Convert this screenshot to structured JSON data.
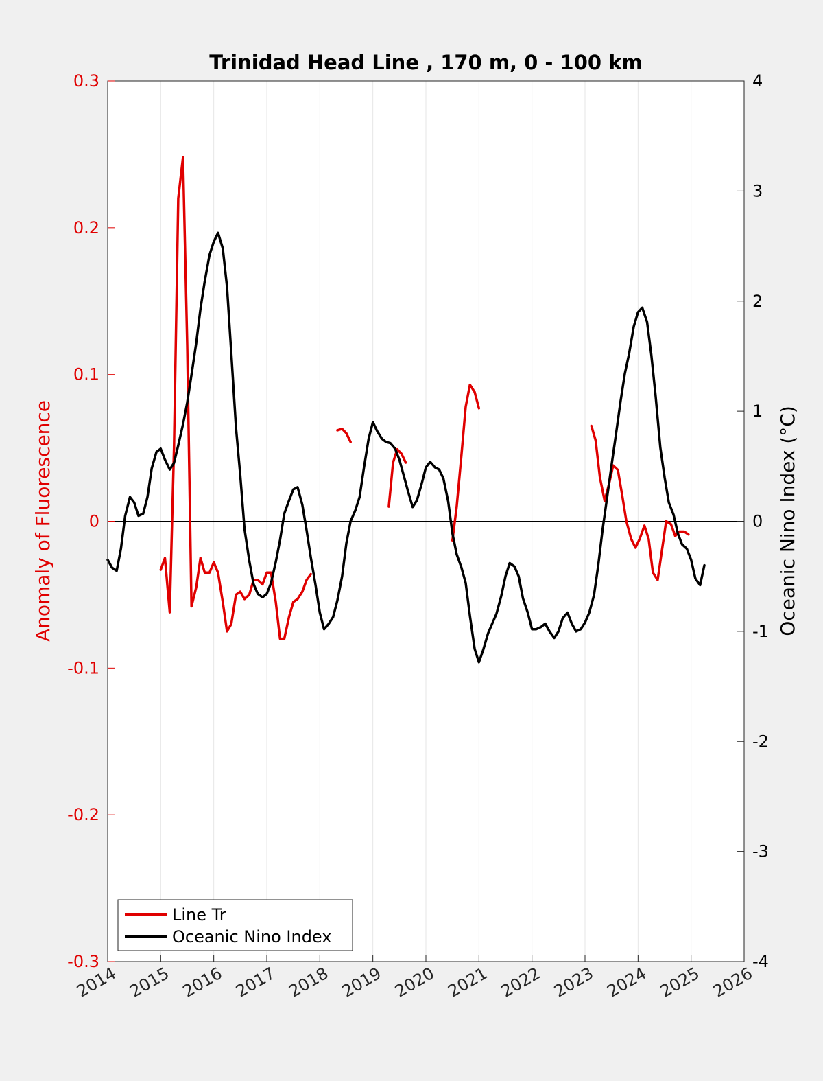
{
  "chart_data": {
    "type": "line",
    "title": "Trinidad Head Line , 170 m, 0 - 100 km",
    "ylabel_left": "Anomaly of Fluorescence",
    "ylabel_right": "Oceanic Nino Index (°C)",
    "xlim": [
      2014,
      2026
    ],
    "ylim_left": [
      -0.3,
      0.3
    ],
    "ylim_right": [
      -4,
      4
    ],
    "xticks": [
      2014,
      2015,
      2016,
      2017,
      2018,
      2019,
      2020,
      2021,
      2022,
      2023,
      2024,
      2025,
      2026
    ],
    "xtick_labels": [
      "2014",
      "2015",
      "2016",
      "2017",
      "2018",
      "2019",
      "2020",
      "2021",
      "2022",
      "2023",
      "2024",
      "2025",
      "2026"
    ],
    "yticks_left": [
      0.3,
      0.2,
      0.1,
      0,
      -0.1,
      -0.2,
      -0.3
    ],
    "ytick_labels_left": [
      "0.3",
      "0.2",
      "0.1",
      "0",
      "-0.1",
      "-0.2",
      "-0.3"
    ],
    "yticks_right": [
      4,
      3,
      2,
      1,
      0,
      -1,
      -2,
      -3,
      -4
    ],
    "ytick_labels_right": [
      "4",
      "3",
      "2",
      "1",
      "0",
      "-1",
      "-2",
      "-3",
      "-4"
    ],
    "grid": "vertical",
    "legend_position": "bottom-left",
    "legend": [
      "Line Tr",
      "Oceanic Nino Index"
    ],
    "colors": {
      "line_tr": "#e00000",
      "oni": "#000000",
      "left_axis": "#e00000"
    },
    "series": [
      {
        "name": "Line Tr",
        "axis": "left",
        "color": "#e00000",
        "segments": [
          [
            [
              2015.0,
              -0.033
            ],
            [
              2015.08,
              -0.025
            ],
            [
              2015.17,
              -0.062
            ],
            [
              2015.25,
              0.05
            ],
            [
              2015.33,
              0.22
            ],
            [
              2015.42,
              0.248
            ],
            [
              2015.5,
              0.12
            ],
            [
              2015.58,
              -0.058
            ],
            [
              2015.67,
              -0.045
            ],
            [
              2015.75,
              -0.025
            ],
            [
              2015.83,
              -0.035
            ],
            [
              2015.92,
              -0.035
            ],
            [
              2016.0,
              -0.028
            ],
            [
              2016.08,
              -0.035
            ],
            [
              2016.17,
              -0.055
            ],
            [
              2016.25,
              -0.075
            ],
            [
              2016.33,
              -0.07
            ],
            [
              2016.42,
              -0.05
            ],
            [
              2016.5,
              -0.048
            ],
            [
              2016.58,
              -0.053
            ],
            [
              2016.67,
              -0.05
            ],
            [
              2016.75,
              -0.04
            ],
            [
              2016.83,
              -0.04
            ],
            [
              2016.92,
              -0.043
            ],
            [
              2017.0,
              -0.035
            ],
            [
              2017.08,
              -0.035
            ],
            [
              2017.17,
              -0.055
            ],
            [
              2017.25,
              -0.08
            ],
            [
              2017.33,
              -0.08
            ],
            [
              2017.42,
              -0.065
            ],
            [
              2017.5,
              -0.055
            ],
            [
              2017.58,
              -0.053
            ],
            [
              2017.67,
              -0.048
            ],
            [
              2017.75,
              -0.04
            ],
            [
              2017.83,
              -0.036
            ]
          ],
          [
            [
              2018.33,
              0.062
            ],
            [
              2018.42,
              0.063
            ],
            [
              2018.5,
              0.06
            ],
            [
              2018.58,
              0.054
            ]
          ],
          [
            [
              2019.3,
              0.01
            ],
            [
              2019.38,
              0.04
            ],
            [
              2019.46,
              0.049
            ],
            [
              2019.54,
              0.046
            ],
            [
              2019.62,
              0.04
            ]
          ],
          [
            [
              2020.5,
              -0.013
            ],
            [
              2020.58,
              0.01
            ],
            [
              2020.67,
              0.045
            ],
            [
              2020.75,
              0.078
            ],
            [
              2020.83,
              0.093
            ],
            [
              2020.92,
              0.088
            ],
            [
              2021.0,
              0.077
            ]
          ],
          [
            [
              2023.12,
              0.065
            ],
            [
              2023.2,
              0.055
            ],
            [
              2023.28,
              0.03
            ],
            [
              2023.37,
              0.014
            ],
            [
              2023.45,
              0.025
            ],
            [
              2023.53,
              0.038
            ],
            [
              2023.62,
              0.035
            ],
            [
              2023.7,
              0.018
            ],
            [
              2023.78,
              0.0
            ],
            [
              2023.87,
              -0.012
            ],
            [
              2023.95,
              -0.018
            ],
            [
              2024.03,
              -0.012
            ],
            [
              2024.12,
              -0.003
            ],
            [
              2024.2,
              -0.012
            ],
            [
              2024.28,
              -0.035
            ],
            [
              2024.37,
              -0.04
            ],
            [
              2024.45,
              -0.02
            ],
            [
              2024.53,
              0.0
            ],
            [
              2024.62,
              -0.002
            ],
            [
              2024.7,
              -0.01
            ],
            [
              2024.78,
              -0.007
            ],
            [
              2024.87,
              -0.007
            ],
            [
              2024.95,
              -0.009
            ]
          ]
        ]
      },
      {
        "name": "Oceanic Nino Index",
        "axis": "right",
        "color": "#000000",
        "segments": [
          [
            [
              2014.0,
              -0.35
            ],
            [
              2014.08,
              -0.42
            ],
            [
              2014.17,
              -0.45
            ],
            [
              2014.25,
              -0.25
            ],
            [
              2014.33,
              0.05
            ],
            [
              2014.42,
              0.22
            ],
            [
              2014.5,
              0.17
            ],
            [
              2014.58,
              0.05
            ],
            [
              2014.67,
              0.07
            ],
            [
              2014.75,
              0.22
            ],
            [
              2014.83,
              0.48
            ],
            [
              2014.92,
              0.63
            ],
            [
              2015.0,
              0.66
            ],
            [
              2015.08,
              0.56
            ],
            [
              2015.17,
              0.47
            ],
            [
              2015.25,
              0.53
            ],
            [
              2015.33,
              0.69
            ],
            [
              2015.42,
              0.88
            ],
            [
              2015.5,
              1.08
            ],
            [
              2015.58,
              1.33
            ],
            [
              2015.67,
              1.62
            ],
            [
              2015.75,
              1.93
            ],
            [
              2015.83,
              2.18
            ],
            [
              2015.92,
              2.42
            ],
            [
              2016.0,
              2.54
            ],
            [
              2016.08,
              2.62
            ],
            [
              2016.17,
              2.48
            ],
            [
              2016.25,
              2.13
            ],
            [
              2016.33,
              1.53
            ],
            [
              2016.42,
              0.85
            ],
            [
              2016.5,
              0.42
            ],
            [
              2016.58,
              -0.07
            ],
            [
              2016.67,
              -0.36
            ],
            [
              2016.75,
              -0.57
            ],
            [
              2016.83,
              -0.66
            ],
            [
              2016.92,
              -0.69
            ],
            [
              2017.0,
              -0.66
            ],
            [
              2017.08,
              -0.56
            ],
            [
              2017.17,
              -0.37
            ],
            [
              2017.25,
              -0.17
            ],
            [
              2017.33,
              0.07
            ],
            [
              2017.42,
              0.19
            ],
            [
              2017.5,
              0.29
            ],
            [
              2017.58,
              0.31
            ],
            [
              2017.67,
              0.15
            ],
            [
              2017.75,
              -0.08
            ],
            [
              2017.83,
              -0.33
            ],
            [
              2017.92,
              -0.58
            ],
            [
              2018.0,
              -0.83
            ],
            [
              2018.08,
              -0.98
            ],
            [
              2018.17,
              -0.93
            ],
            [
              2018.25,
              -0.87
            ],
            [
              2018.33,
              -0.72
            ],
            [
              2018.42,
              -0.5
            ],
            [
              2018.5,
              -0.2
            ],
            [
              2018.58,
              0.0
            ],
            [
              2018.67,
              0.1
            ],
            [
              2018.75,
              0.22
            ],
            [
              2018.83,
              0.48
            ],
            [
              2018.92,
              0.75
            ],
            [
              2019.0,
              0.9
            ],
            [
              2019.08,
              0.82
            ],
            [
              2019.17,
              0.75
            ],
            [
              2019.25,
              0.72
            ],
            [
              2019.33,
              0.71
            ],
            [
              2019.42,
              0.66
            ],
            [
              2019.5,
              0.56
            ],
            [
              2019.58,
              0.42
            ],
            [
              2019.67,
              0.26
            ],
            [
              2019.75,
              0.13
            ],
            [
              2019.83,
              0.19
            ],
            [
              2019.92,
              0.34
            ],
            [
              2020.0,
              0.49
            ],
            [
              2020.08,
              0.54
            ],
            [
              2020.17,
              0.49
            ],
            [
              2020.25,
              0.47
            ],
            [
              2020.33,
              0.39
            ],
            [
              2020.42,
              0.18
            ],
            [
              2020.5,
              -0.11
            ],
            [
              2020.58,
              -0.3
            ],
            [
              2020.67,
              -0.42
            ],
            [
              2020.75,
              -0.56
            ],
            [
              2020.83,
              -0.86
            ],
            [
              2020.92,
              -1.16
            ],
            [
              2021.0,
              -1.28
            ],
            [
              2021.08,
              -1.17
            ],
            [
              2021.17,
              -1.02
            ],
            [
              2021.25,
              -0.93
            ],
            [
              2021.33,
              -0.84
            ],
            [
              2021.42,
              -0.68
            ],
            [
              2021.5,
              -0.5
            ],
            [
              2021.58,
              -0.38
            ],
            [
              2021.67,
              -0.41
            ],
            [
              2021.75,
              -0.5
            ],
            [
              2021.83,
              -0.7
            ],
            [
              2021.92,
              -0.83
            ],
            [
              2022.0,
              -0.98
            ],
            [
              2022.08,
              -0.98
            ],
            [
              2022.17,
              -0.96
            ],
            [
              2022.25,
              -0.93
            ],
            [
              2022.33,
              -1.0
            ],
            [
              2022.42,
              -1.06
            ],
            [
              2022.5,
              -1.0
            ],
            [
              2022.58,
              -0.88
            ],
            [
              2022.67,
              -0.83
            ],
            [
              2022.75,
              -0.93
            ],
            [
              2022.83,
              -1.0
            ],
            [
              2022.92,
              -0.98
            ],
            [
              2023.0,
              -0.92
            ],
            [
              2023.08,
              -0.83
            ],
            [
              2023.17,
              -0.67
            ],
            [
              2023.25,
              -0.4
            ],
            [
              2023.33,
              -0.08
            ],
            [
              2023.42,
              0.23
            ],
            [
              2023.5,
              0.51
            ],
            [
              2023.58,
              0.78
            ],
            [
              2023.67,
              1.09
            ],
            [
              2023.75,
              1.34
            ],
            [
              2023.83,
              1.52
            ],
            [
              2023.92,
              1.77
            ],
            [
              2024.0,
              1.9
            ],
            [
              2024.08,
              1.94
            ],
            [
              2024.17,
              1.81
            ],
            [
              2024.25,
              1.51
            ],
            [
              2024.33,
              1.14
            ],
            [
              2024.42,
              0.67
            ],
            [
              2024.5,
              0.4
            ],
            [
              2024.58,
              0.17
            ],
            [
              2024.67,
              0.06
            ],
            [
              2024.75,
              -0.11
            ],
            [
              2024.83,
              -0.21
            ],
            [
              2024.92,
              -0.25
            ],
            [
              2025.0,
              -0.35
            ],
            [
              2025.08,
              -0.52
            ],
            [
              2025.17,
              -0.58
            ],
            [
              2025.25,
              -0.4
            ]
          ]
        ]
      }
    ]
  }
}
